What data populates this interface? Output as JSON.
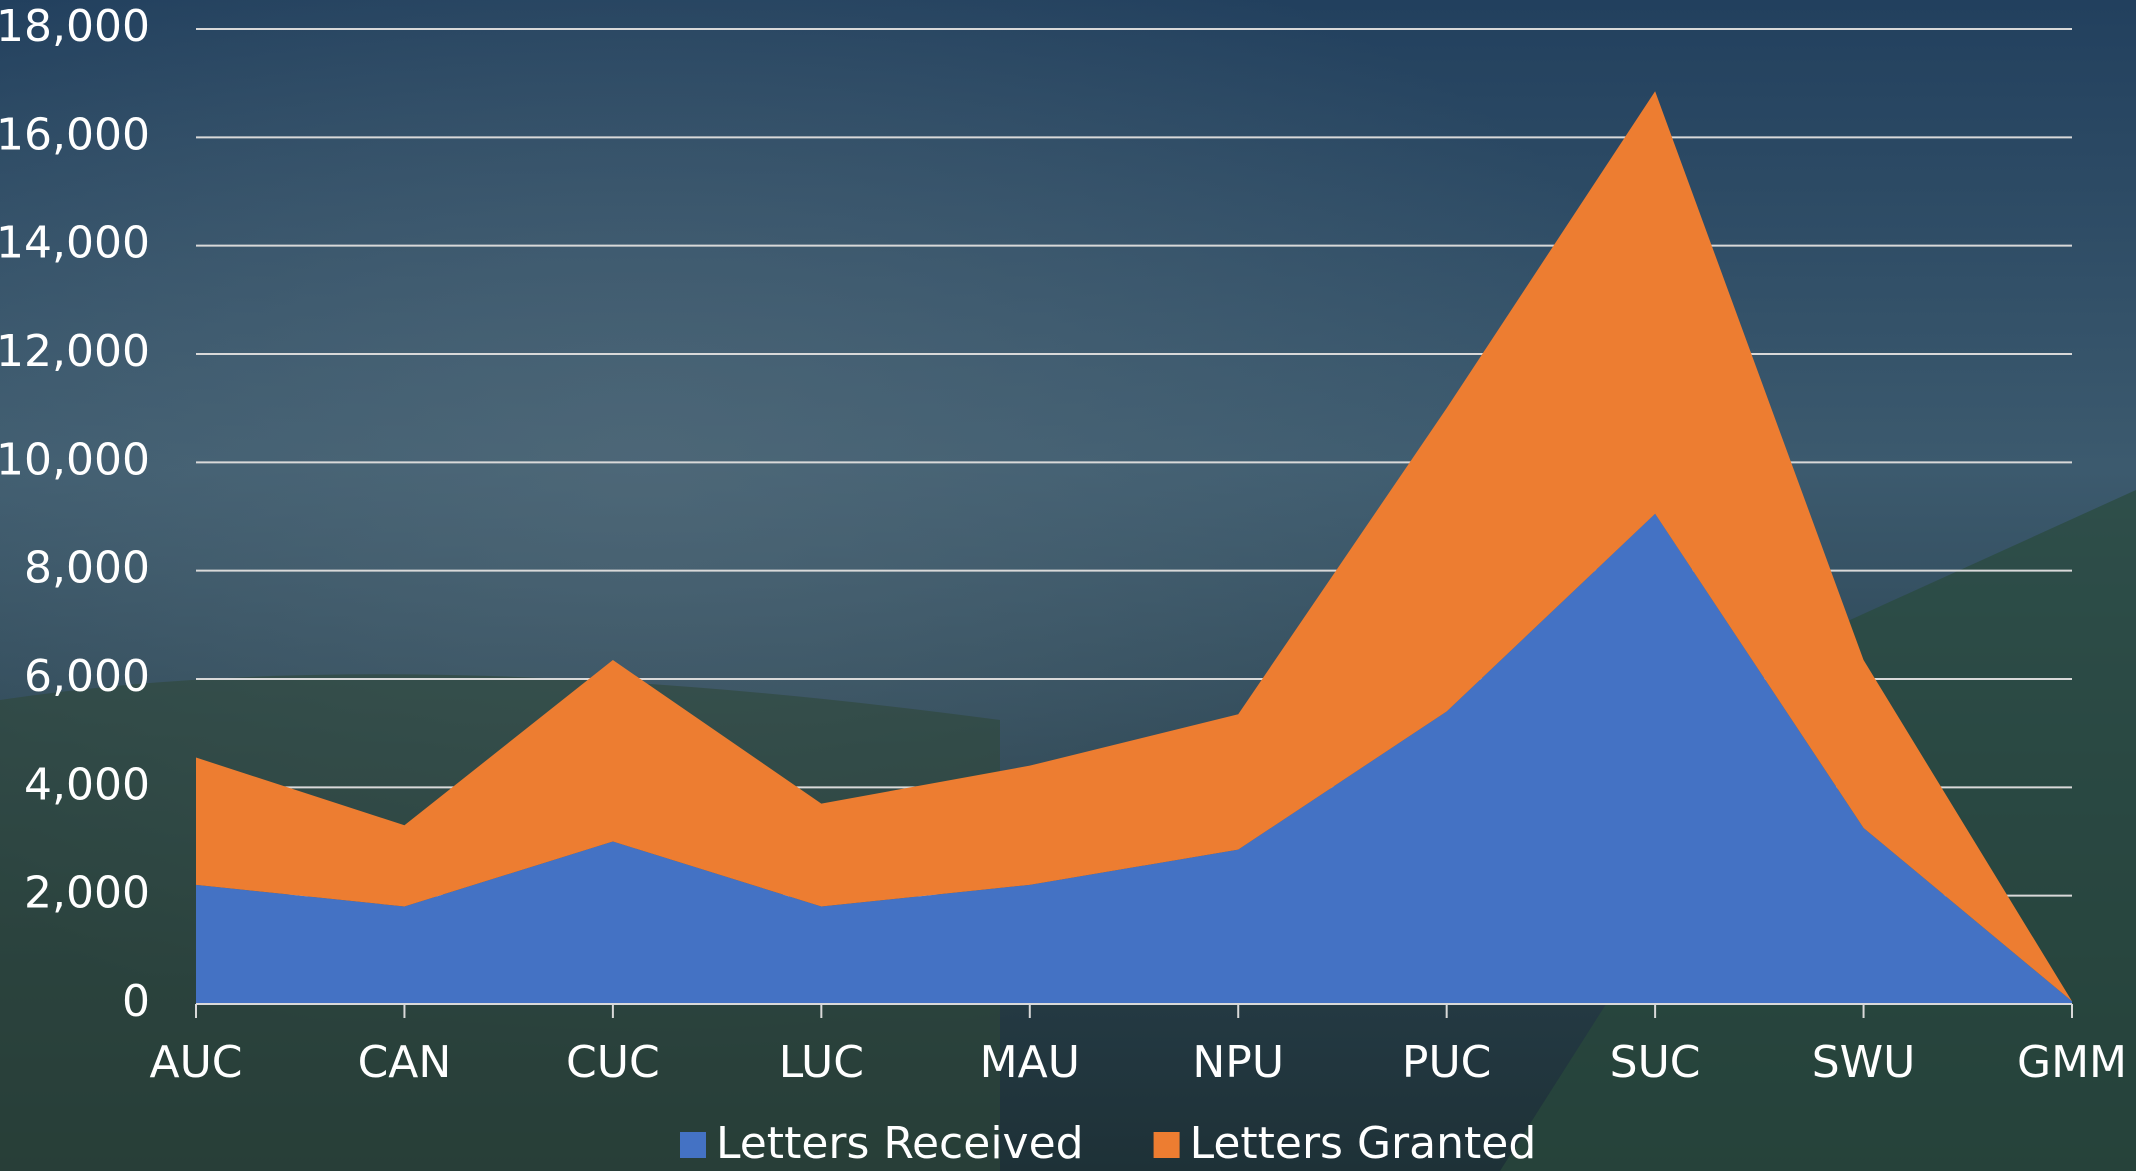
{
  "chart_data": {
    "type": "area",
    "stacked": true,
    "categories": [
      "AUC",
      "CAN",
      "CUC",
      "LUC",
      "MAU",
      "NPU",
      "PUC",
      "SUC",
      "SWU",
      "GMM"
    ],
    "series": [
      {
        "name": "Letters Received",
        "color": "#4472c4",
        "values": [
          2200,
          1800,
          3000,
          1800,
          2200,
          2850,
          5400,
          9050,
          3250,
          50
        ]
      },
      {
        "name": "Letters Granted",
        "color": "#ed7d31",
        "values": [
          2350,
          1500,
          3350,
          1900,
          2200,
          2500,
          5600,
          7800,
          3100,
          0
        ]
      }
    ],
    "ylim": [
      0,
      18000
    ],
    "yticks": [
      0,
      {
        "value": 2000,
        "label": "2,000"
      },
      {
        "value": 4000,
        "label": "4,000"
      },
      {
        "value": 6000,
        "label": "6,000"
      },
      {
        "value": 8000,
        "label": "8,000"
      },
      {
        "value": 10000,
        "label": "10,000"
      },
      {
        "value": 12000,
        "label": "12,000"
      },
      {
        "value": 14000,
        "label": "14,000"
      },
      {
        "value": 16000,
        "label": "16,000"
      },
      {
        "value": 18000,
        "label": "18,000"
      }
    ],
    "grid": true,
    "legend": "bottom"
  }
}
